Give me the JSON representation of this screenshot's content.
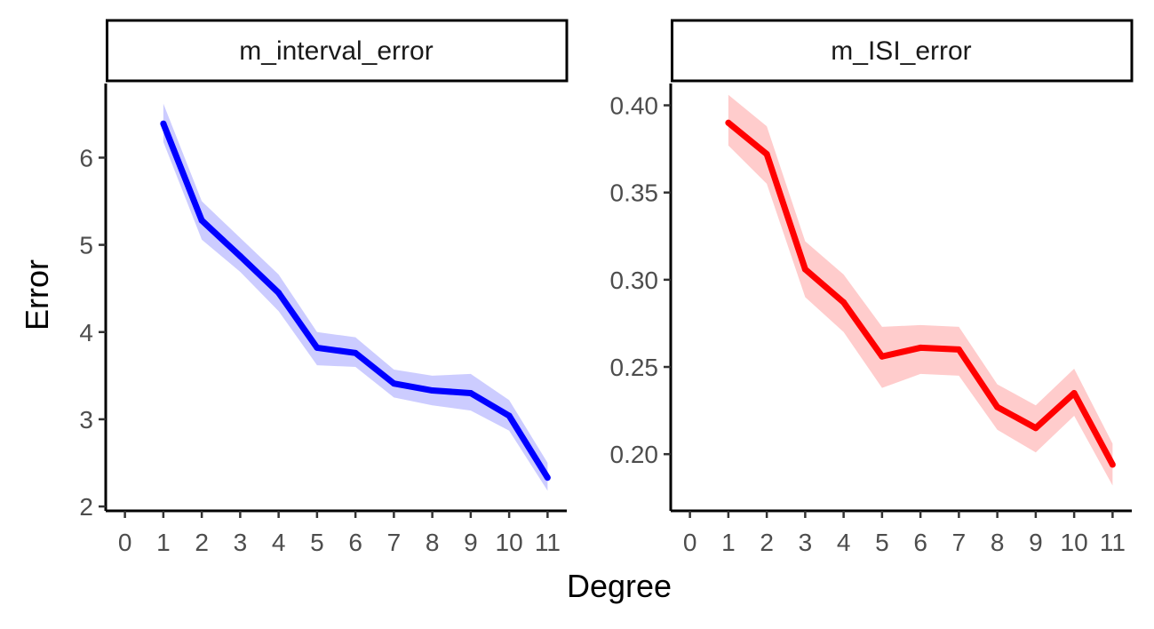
{
  "figure": {
    "xlabel": "Degree",
    "ylabel": "Error"
  },
  "chart_data": [
    {
      "type": "line",
      "title": "m_interval_error",
      "x": [
        1,
        2,
        3,
        4,
        5,
        6,
        7,
        8,
        9,
        10,
        11
      ],
      "xticks": [
        "0",
        "1",
        "2",
        "3",
        "4",
        "5",
        "6",
        "7",
        "8",
        "9",
        "10",
        "11"
      ],
      "xlim": [
        -0.5,
        11.5
      ],
      "ylim": [
        1.95,
        6.85
      ],
      "yticks": [
        "2",
        "3",
        "4",
        "5",
        "6"
      ],
      "series": [
        {
          "color": "#0000ff",
          "ribbon_color": "#ccccff",
          "values": [
            6.39,
            5.28,
            4.87,
            4.45,
            3.82,
            3.76,
            3.41,
            3.33,
            3.3,
            3.04,
            2.33
          ],
          "lower": [
            6.18,
            5.06,
            4.69,
            4.24,
            3.62,
            3.6,
            3.25,
            3.16,
            3.1,
            2.87,
            2.18
          ],
          "upper": [
            6.62,
            5.5,
            5.08,
            4.66,
            4.0,
            3.94,
            3.57,
            3.5,
            3.52,
            3.22,
            2.5
          ]
        }
      ]
    },
    {
      "type": "line",
      "title": "m_ISI_error",
      "x": [
        1,
        2,
        3,
        4,
        5,
        6,
        7,
        8,
        9,
        10,
        11
      ],
      "xticks": [
        "0",
        "1",
        "2",
        "3",
        "4",
        "5",
        "6",
        "7",
        "8",
        "9",
        "10",
        "11"
      ],
      "xlim": [
        -0.5,
        11.5
      ],
      "ylim": [
        0.1675,
        0.4125
      ],
      "yticks": [
        "0.20",
        "0.25",
        "0.30",
        "0.35",
        "0.40"
      ],
      "series": [
        {
          "color": "#ff0000",
          "ribbon_color": "#ffcccc",
          "values": [
            0.39,
            0.372,
            0.306,
            0.287,
            0.256,
            0.261,
            0.26,
            0.227,
            0.215,
            0.235,
            0.194
          ],
          "lower": [
            0.377,
            0.355,
            0.29,
            0.27,
            0.238,
            0.246,
            0.245,
            0.214,
            0.201,
            0.222,
            0.182
          ],
          "upper": [
            0.406,
            0.388,
            0.322,
            0.303,
            0.273,
            0.274,
            0.273,
            0.24,
            0.228,
            0.249,
            0.206
          ]
        }
      ]
    }
  ]
}
